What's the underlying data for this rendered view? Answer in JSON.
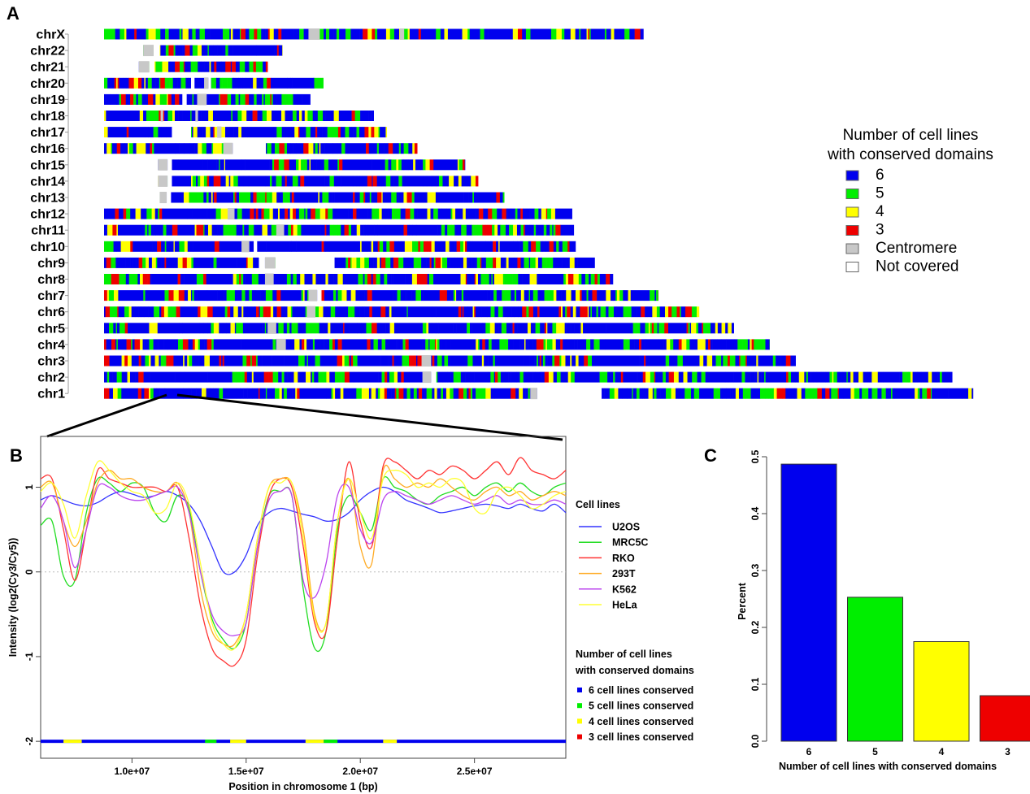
{
  "panel_labels": {
    "a": "A",
    "b": "B",
    "c": "C"
  },
  "colors": {
    "c6": "#0000ee",
    "c5": "#00ee00",
    "c4": "#ffff00",
    "c3": "#ee0000",
    "centromere": "#c8c8c8",
    "not_covered": "#ffffff"
  },
  "chart_data": [
    {
      "type": "heatmap",
      "panel": "A",
      "chromosomes": [
        {
          "name": "chrX",
          "start": 0.0,
          "end": 0.62,
          "gaps": [
            [
              0.235,
              0.248,
              "centromere"
            ],
            [
              0.34,
              0.345,
              "centromere"
            ]
          ]
        },
        {
          "name": "chr22",
          "start": 0.045,
          "end": 0.205,
          "gaps": [
            [
              0.045,
              0.057,
              "centromere"
            ],
            [
              0.057,
              0.064,
              "none"
            ]
          ]
        },
        {
          "name": "chr21",
          "start": 0.04,
          "end": 0.188,
          "gaps": [
            [
              0.04,
              0.052,
              "centromere"
            ],
            [
              0.052,
              0.058,
              "none"
            ]
          ]
        },
        {
          "name": "chr20",
          "start": 0.0,
          "end": 0.252,
          "gaps": [
            [
              0.1,
              0.104,
              "none"
            ],
            [
              0.115,
              0.12,
              "centromere"
            ],
            [
              0.12,
              0.123,
              "none"
            ]
          ]
        },
        {
          "name": "chr19",
          "start": 0.0,
          "end": 0.237,
          "gaps": [
            [
              0.09,
              0.095,
              "none"
            ],
            [
              0.107,
              0.118,
              "centromere"
            ]
          ]
        },
        {
          "name": "chr18",
          "start": 0.0,
          "end": 0.31,
          "gaps": [
            [
              0.065,
              0.068,
              "centromere"
            ],
            [
              0.105,
              0.108,
              "centromere"
            ]
          ]
        },
        {
          "name": "chr17",
          "start": 0.0,
          "end": 0.325,
          "gaps": [
            [
              0.078,
              0.1,
              "none"
            ],
            [
              0.13,
              0.135,
              "centromere"
            ]
          ]
        },
        {
          "name": "chr16",
          "start": 0.0,
          "end": 0.36,
          "gaps": [
            [
              0.137,
              0.148,
              "centromere"
            ],
            [
              0.148,
              0.186,
              "none"
            ]
          ]
        },
        {
          "name": "chr15",
          "start": 0.062,
          "end": 0.415,
          "gaps": [
            [
              0.062,
              0.073,
              "centromere"
            ],
            [
              0.073,
              0.078,
              "none"
            ]
          ]
        },
        {
          "name": "chr14",
          "start": 0.062,
          "end": 0.43,
          "gaps": [
            [
              0.062,
              0.073,
              "centromere"
            ],
            [
              0.073,
              0.078,
              "none"
            ]
          ]
        },
        {
          "name": "chr13",
          "start": 0.064,
          "end": 0.46,
          "gaps": [
            [
              0.064,
              0.072,
              "centromere"
            ],
            [
              0.072,
              0.077,
              "none"
            ]
          ]
        },
        {
          "name": "chr12",
          "start": 0.0,
          "end": 0.538,
          "gaps": [
            [
              0.142,
              0.15,
              "centromere"
            ]
          ]
        },
        {
          "name": "chr11",
          "start": 0.0,
          "end": 0.54,
          "gaps": [
            [
              0.198,
              0.207,
              "centromere"
            ]
          ]
        },
        {
          "name": "chr10",
          "start": 0.0,
          "end": 0.542,
          "gaps": [
            [
              0.158,
              0.167,
              "centromere"
            ],
            [
              0.172,
              0.176,
              "none"
            ]
          ]
        },
        {
          "name": "chr9",
          "start": 0.0,
          "end": 0.564,
          "gaps": [
            [
              0.178,
              0.185,
              "none"
            ],
            [
              0.185,
              0.197,
              "centromere"
            ],
            [
              0.197,
              0.265,
              "none"
            ]
          ]
        },
        {
          "name": "chr8",
          "start": 0.0,
          "end": 0.585,
          "gaps": [
            [
              0.185,
              0.195,
              "centromere"
            ]
          ]
        },
        {
          "name": "chr7",
          "start": 0.0,
          "end": 0.637,
          "gaps": [
            [
              0.235,
              0.245,
              "centromere"
            ],
            [
              0.245,
              0.25,
              "none"
            ]
          ]
        },
        {
          "name": "chr6",
          "start": 0.0,
          "end": 0.684,
          "gaps": [
            [
              0.233,
              0.243,
              "centromere"
            ]
          ]
        },
        {
          "name": "chr5",
          "start": 0.0,
          "end": 0.724,
          "gaps": [
            [
              0.188,
              0.198,
              "centromere"
            ]
          ]
        },
        {
          "name": "chr4",
          "start": 0.0,
          "end": 0.765,
          "gaps": [
            [
              0.198,
              0.209,
              "centromere"
            ]
          ]
        },
        {
          "name": "chr3",
          "start": 0.0,
          "end": 0.795,
          "gaps": [
            [
              0.365,
              0.376,
              "centromere"
            ]
          ]
        },
        {
          "name": "chr2",
          "start": 0.0,
          "end": 0.975,
          "gaps": [
            [
              0.366,
              0.376,
              "centromere"
            ],
            [
              0.376,
              0.382,
              "none"
            ]
          ]
        },
        {
          "name": "chr1",
          "start": 0.0,
          "end": 0.999,
          "gaps": [
            [
              0.49,
              0.498,
              "centromere"
            ],
            [
              0.498,
              0.572,
              "none"
            ]
          ]
        }
      ],
      "legend": {
        "title_line1": "Number of cell lines",
        "title_line2": "with conserved domains",
        "items": [
          {
            "label": "6",
            "color": "#0000ee"
          },
          {
            "label": "5",
            "color": "#00ee00"
          },
          {
            "label": "4",
            "color": "#ffff00"
          },
          {
            "label": "3",
            "color": "#ee0000"
          },
          {
            "label": "Centromere",
            "color": "#c8c8c8"
          },
          {
            "label": "Not covered",
            "color": "#ffffff"
          }
        ]
      }
    },
    {
      "type": "line",
      "panel": "B",
      "xlabel": "Position in chromosome 1 (bp)",
      "ylabel": "Intensity (log2(Cy3/Cy5))",
      "xlim": [
        6000000,
        29000000
      ],
      "ylim": [
        -2.2,
        1.6
      ],
      "x_ticks": [
        {
          "value": 10000000,
          "label": "1.0e+07"
        },
        {
          "value": 15000000,
          "label": "1.5e+07"
        },
        {
          "value": 20000000,
          "label": "2.0e+07"
        },
        {
          "value": 25000000,
          "label": "2.5e+07"
        }
      ],
      "y_ticks": [
        {
          "value": -2,
          "label": "-2"
        },
        {
          "value": -1,
          "label": "-1"
        },
        {
          "value": 0,
          "label": "0"
        },
        {
          "value": 1,
          "label": "1"
        }
      ],
      "x_mb": [
        6,
        6.5,
        7,
        7.5,
        8,
        8.5,
        9,
        9.5,
        10,
        10.5,
        11,
        11.5,
        12,
        12.5,
        13,
        13.5,
        14,
        14.5,
        15,
        15.5,
        16,
        16.5,
        17,
        17.5,
        18,
        18.5,
        19,
        19.5,
        20,
        20.5,
        21,
        21.5,
        22,
        22.5,
        23,
        23.5,
        24,
        24.5,
        25,
        25.5,
        26,
        26.5,
        27,
        27.5,
        28,
        28.5,
        29
      ],
      "series": [
        {
          "name": "U2OS",
          "color": "#3333ff",
          "values": [
            0.85,
            0.9,
            0.85,
            0.8,
            0.78,
            0.82,
            0.9,
            0.95,
            0.92,
            0.88,
            0.9,
            0.95,
            0.9,
            0.8,
            0.6,
            0.3,
            0.0,
            0.0,
            0.2,
            0.55,
            0.7,
            0.75,
            0.72,
            0.68,
            0.65,
            0.6,
            0.62,
            0.7,
            0.85,
            0.95,
            1.0,
            0.95,
            0.85,
            0.8,
            0.75,
            0.7,
            0.72,
            0.75,
            0.78,
            0.8,
            0.78,
            0.75,
            0.8,
            0.75,
            0.72,
            0.8,
            0.7
          ]
        },
        {
          "name": "MRC5C",
          "color": "#22dd22",
          "values": [
            0.55,
            0.6,
            -0.05,
            -0.1,
            0.7,
            1.1,
            1.05,
            0.95,
            1.05,
            1.0,
            0.7,
            0.6,
            0.9,
            0.75,
            0.0,
            -0.55,
            -0.8,
            -0.9,
            -0.6,
            0.3,
            0.9,
            0.95,
            0.9,
            -0.2,
            -0.9,
            -0.7,
            0.5,
            0.9,
            0.7,
            0.5,
            1.1,
            1.0,
            0.95,
            0.85,
            0.8,
            0.9,
            0.95,
            1.0,
            0.9,
            1.0,
            1.05,
            0.95,
            1.05,
            0.95,
            0.9,
            1.0,
            1.05
          ]
        },
        {
          "name": "RKO",
          "color": "#ff3333",
          "values": [
            1.1,
            1.1,
            0.5,
            -0.1,
            0.5,
            1.2,
            1.1,
            1.05,
            1.0,
            1.0,
            1.0,
            0.95,
            1.0,
            0.4,
            -0.4,
            -0.9,
            -1.05,
            -1.1,
            -0.8,
            0.2,
            0.9,
            1.1,
            1.0,
            0.3,
            -0.6,
            -0.7,
            0.4,
            1.3,
            0.6,
            0.3,
            1.25,
            1.3,
            1.2,
            1.1,
            1.2,
            1.15,
            1.25,
            1.2,
            1.1,
            1.2,
            1.3,
            1.15,
            1.35,
            1.2,
            1.15,
            1.1,
            1.2
          ]
        },
        {
          "name": "293T",
          "color": "#ffaa22",
          "values": [
            1.0,
            1.05,
            0.6,
            0.3,
            0.6,
            1.05,
            1.2,
            1.1,
            1.1,
            1.0,
            0.95,
            0.95,
            1.05,
            0.7,
            -0.2,
            -0.7,
            -0.85,
            -0.85,
            -0.5,
            0.4,
            1.0,
            1.1,
            1.05,
            0.5,
            -0.5,
            -0.6,
            0.6,
            1.1,
            0.3,
            0.1,
            1.2,
            1.1,
            1.0,
            1.05,
            1.0,
            1.1,
            1.0,
            0.9,
            0.85,
            0.95,
            1.0,
            0.9,
            0.95,
            0.85,
            0.9,
            0.95,
            0.9
          ]
        },
        {
          "name": "K562",
          "color": "#bb44ee",
          "values": [
            0.75,
            0.9,
            0.6,
            0.05,
            0.5,
            1.0,
            1.0,
            0.9,
            0.85,
            0.85,
            0.9,
            0.95,
            1.0,
            0.7,
            0.0,
            -0.5,
            -0.7,
            -0.75,
            -0.6,
            0.3,
            0.85,
            0.95,
            0.9,
            -0.1,
            -0.3,
            0.1,
            0.9,
            1.0,
            0.5,
            0.35,
            0.85,
            0.95,
            0.9,
            0.85,
            0.8,
            0.85,
            0.9,
            0.85,
            0.8,
            0.85,
            0.9,
            0.8,
            0.85,
            0.8,
            0.8,
            0.85,
            0.8
          ]
        },
        {
          "name": "HeLa",
          "color": "#ffff33",
          "values": [
            0.95,
            1.05,
            0.8,
            0.4,
            0.9,
            1.3,
            1.2,
            1.05,
            0.95,
            0.9,
            0.7,
            0.75,
            1.05,
            0.8,
            0.1,
            -0.6,
            -0.85,
            -0.9,
            -0.5,
            0.4,
            1.0,
            1.05,
            1.05,
            0.4,
            -0.55,
            -0.6,
            0.6,
            1.1,
            0.7,
            0.4,
            1.1,
            1.2,
            1.15,
            1.0,
            1.05,
            1.0,
            1.1,
            1.05,
            0.75,
            0.7,
            0.95,
            1.0,
            0.9,
            0.75,
            0.8,
            0.9,
            0.95
          ]
        }
      ],
      "domain_track_y": -2,
      "domain_segments": [
        {
          "x0": 7.0,
          "x1": 7.8,
          "level": "4"
        },
        {
          "x0": 13.2,
          "x1": 13.7,
          "level": "5"
        },
        {
          "x0": 14.3,
          "x1": 15.0,
          "level": "4"
        },
        {
          "x0": 17.6,
          "x1": 18.4,
          "level": "4"
        },
        {
          "x0": 18.4,
          "x1": 19.0,
          "level": "5"
        },
        {
          "x0": 21.0,
          "x1": 21.6,
          "level": "4"
        }
      ],
      "legend_lines": {
        "title": "Cell lines",
        "items": [
          "U2OS",
          "MRC5C",
          "RKO",
          "293T",
          "K562",
          "HeLa"
        ]
      },
      "legend_domains": {
        "title_line1": "Number of cell lines",
        "title_line2": "with conserved domains",
        "items": [
          {
            "label": "6 cell lines conserved",
            "color": "#0000ee"
          },
          {
            "label": "5 cell lines conserved",
            "color": "#00ee00"
          },
          {
            "label": "4 cell lines conserved",
            "color": "#ffff00"
          },
          {
            "label": "3 cell lines conserved",
            "color": "#ee0000"
          }
        ]
      }
    },
    {
      "type": "bar",
      "panel": "C",
      "categories": [
        "6",
        "5",
        "4",
        "3"
      ],
      "values": [
        0.487,
        0.253,
        0.175,
        0.08
      ],
      "colors": [
        "#0000ee",
        "#00ee00",
        "#ffff00",
        "#ee0000"
      ],
      "xlabel": "Number of cell lines with conserved domains",
      "ylabel": "Percent",
      "ylim": [
        0,
        0.5
      ],
      "y_ticks": [
        {
          "value": 0.0,
          "label": "0.0"
        },
        {
          "value": 0.1,
          "label": "0.1"
        },
        {
          "value": 0.2,
          "label": "0.2"
        },
        {
          "value": 0.3,
          "label": "0.3"
        },
        {
          "value": 0.4,
          "label": "0.4"
        },
        {
          "value": 0.5,
          "label": "0.5"
        }
      ]
    }
  ]
}
